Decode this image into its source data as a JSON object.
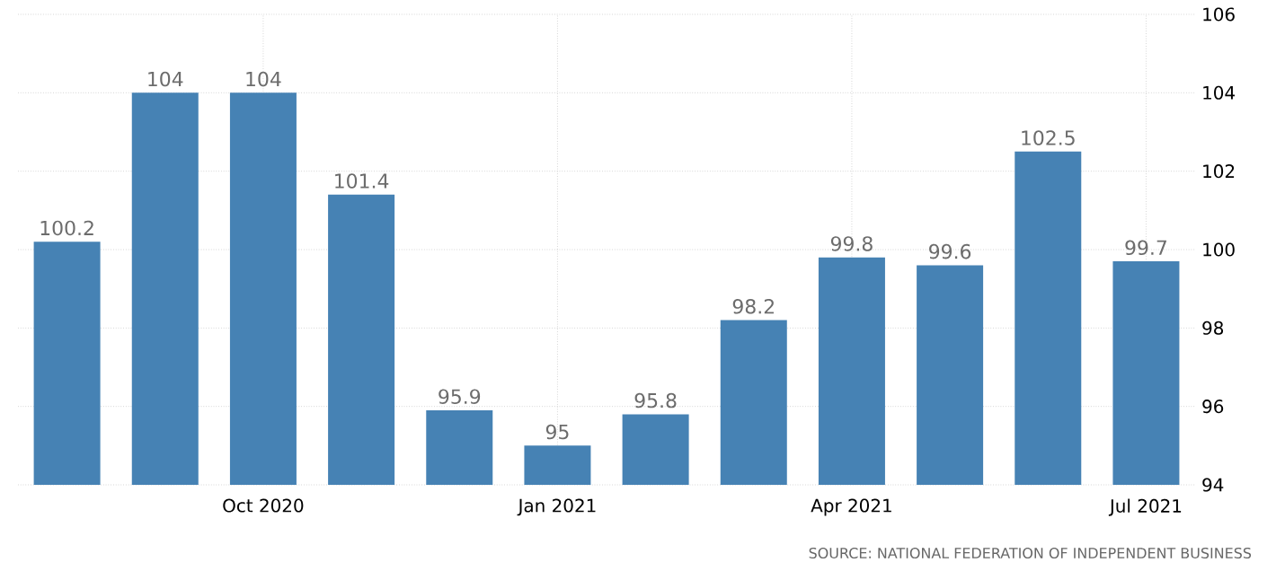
{
  "chart_data": {
    "type": "bar",
    "categories": [
      null,
      null,
      "Oct 2020",
      null,
      null,
      "Jan 2021",
      null,
      null,
      "Apr 2021",
      null,
      null,
      "Jul 2021"
    ],
    "values": [
      100.2,
      104,
      104,
      101.4,
      95.9,
      95,
      95.8,
      98.2,
      99.8,
      99.6,
      102.5,
      99.7
    ],
    "color": "#4682b4",
    "ylim": [
      94,
      106
    ],
    "yticks": [
      94,
      96,
      98,
      100,
      102,
      104,
      106
    ],
    "grid": true,
    "data_labels": true,
    "annotations": [
      "SOURCE: NATIONAL FEDERATION OF INDEPENDENT BUSINESS"
    ]
  }
}
